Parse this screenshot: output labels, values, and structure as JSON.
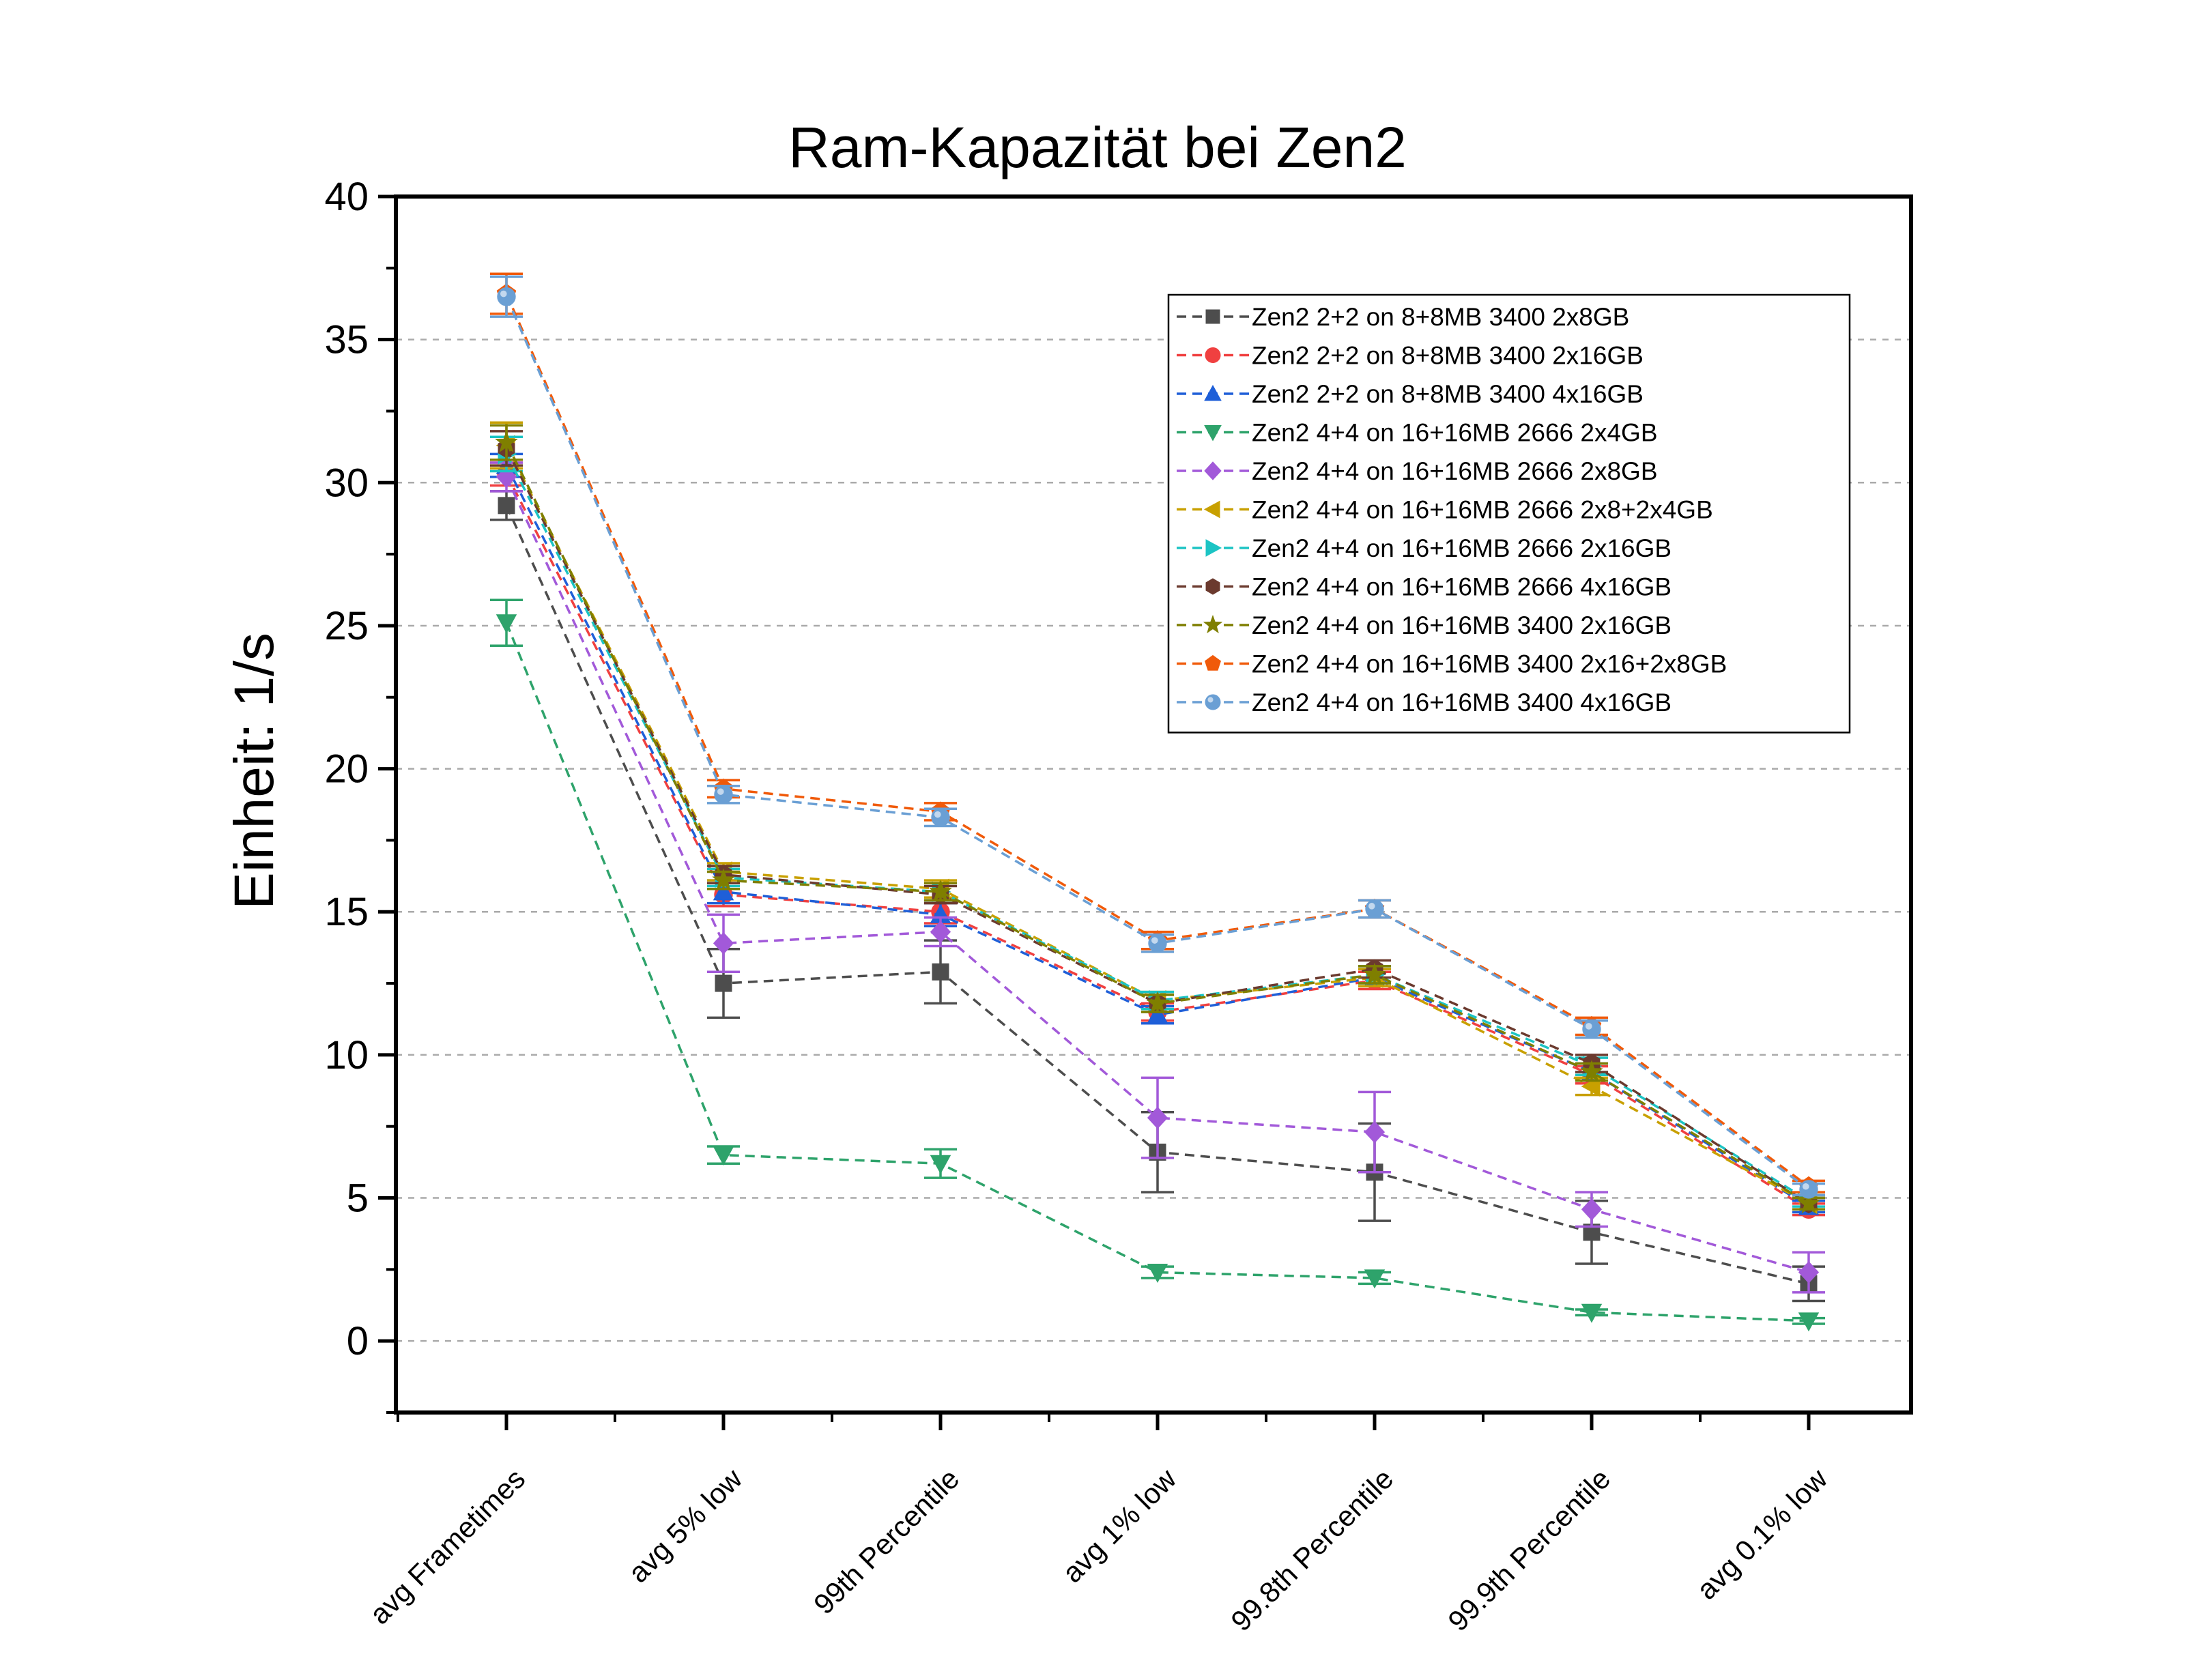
{
  "chart_data": {
    "type": "line",
    "title": "Ram-Kapazität bei Zen2",
    "xlabel": "",
    "ylabel": "Einheit: 1/s",
    "ylim": [
      -2.5,
      40
    ],
    "yticks": [
      0,
      5,
      10,
      15,
      20,
      25,
      30,
      35,
      40
    ],
    "grid": "horizontal dashed",
    "legend_position": "top-right",
    "categories": [
      "avg Frametimes",
      "avg 5% low",
      "99th Percentile",
      "avg 1% low",
      "99.8th Percentile",
      "99.9th Percentile",
      "avg 0.1% low"
    ],
    "series": [
      {
        "name": "Zen2 2+2 on 8+8MB 3400 2x8GB",
        "color": "#4d4d4d",
        "marker": "square",
        "values": [
          29.2,
          12.5,
          12.9,
          6.6,
          5.9,
          3.8,
          2.0
        ],
        "errors": [
          0.5,
          1.2,
          1.1,
          1.4,
          1.7,
          1.1,
          0.6
        ]
      },
      {
        "name": "Zen2 2+2 on 8+8MB 3400 2x16GB",
        "color": "#f04040",
        "marker": "circle",
        "values": [
          30.3,
          15.6,
          15.0,
          11.5,
          12.6,
          9.3,
          4.6
        ],
        "errors": [
          0.4,
          0.4,
          0.4,
          0.3,
          0.3,
          0.3,
          0.2
        ]
      },
      {
        "name": "Zen2 2+2 on 8+8MB 3400 4x16GB",
        "color": "#1f5fd8",
        "marker": "triangle-up",
        "values": [
          30.6,
          15.7,
          14.9,
          11.4,
          12.7,
          9.4,
          4.7
        ],
        "errors": [
          0.4,
          0.4,
          0.4,
          0.3,
          0.3,
          0.3,
          0.2
        ]
      },
      {
        "name": "Zen2 4+4 on 16+16MB 2666 2x4GB",
        "color": "#2ea36b",
        "marker": "triangle-down",
        "values": [
          25.1,
          6.5,
          6.2,
          2.4,
          2.2,
          1.0,
          0.7
        ],
        "errors": [
          0.8,
          0.3,
          0.5,
          0.2,
          0.2,
          0.1,
          0.1
        ]
      },
      {
        "name": "Zen2 4+4 on 16+16MB 2666 2x8GB",
        "color": "#a259d9",
        "marker": "diamond",
        "values": [
          30.2,
          13.9,
          14.3,
          7.8,
          7.3,
          4.6,
          2.4
        ],
        "errors": [
          0.5,
          1.0,
          0.5,
          1.4,
          1.4,
          0.6,
          0.7
        ]
      },
      {
        "name": "Zen2 4+4 on 16+16MB 2666 2x8+2x4GB",
        "color": "#c8a000",
        "marker": "triangle-left",
        "values": [
          31.3,
          16.4,
          15.8,
          11.9,
          12.7,
          8.9,
          4.8
        ],
        "errors": [
          0.8,
          0.3,
          0.3,
          0.3,
          0.3,
          0.3,
          0.2
        ]
      },
      {
        "name": "Zen2 4+4 on 16+16MB 2666 2x16GB",
        "color": "#1cc4c4",
        "marker": "triangle-right",
        "values": [
          31.0,
          16.2,
          15.7,
          11.9,
          12.8,
          9.6,
          4.9
        ],
        "errors": [
          0.6,
          0.3,
          0.3,
          0.3,
          0.3,
          0.3,
          0.2
        ]
      },
      {
        "name": "Zen2 4+4 on 16+16MB 2666 4x16GB",
        "color": "#6b3a2e",
        "marker": "hexagon",
        "values": [
          31.2,
          16.3,
          15.6,
          11.8,
          13.0,
          9.7,
          4.8
        ],
        "errors": [
          0.6,
          0.3,
          0.3,
          0.3,
          0.3,
          0.3,
          0.2
        ]
      },
      {
        "name": "Zen2 4+4 on 16+16MB 3400 2x16GB",
        "color": "#7f7f00",
        "marker": "star",
        "values": [
          31.4,
          16.1,
          15.7,
          11.8,
          12.8,
          9.4,
          4.8
        ],
        "errors": [
          0.6,
          0.3,
          0.3,
          0.3,
          0.3,
          0.3,
          0.2
        ]
      },
      {
        "name": "Zen2 4+4 on 16+16MB 3400 2x16+2x8GB",
        "color": "#f05a0a",
        "marker": "pentagon",
        "values": [
          36.6,
          19.3,
          18.5,
          14.0,
          15.1,
          11.0,
          5.4
        ],
        "errors": [
          0.7,
          0.3,
          0.3,
          0.3,
          0.3,
          0.3,
          0.2
        ]
      },
      {
        "name": "Zen2 4+4 on 16+16MB 3400 4x16GB",
        "color": "#6a9fd4",
        "marker": "sphere",
        "values": [
          36.5,
          19.1,
          18.3,
          13.9,
          15.1,
          10.9,
          5.3
        ],
        "errors": [
          0.7,
          0.3,
          0.3,
          0.3,
          0.3,
          0.3,
          0.2
        ]
      }
    ]
  }
}
